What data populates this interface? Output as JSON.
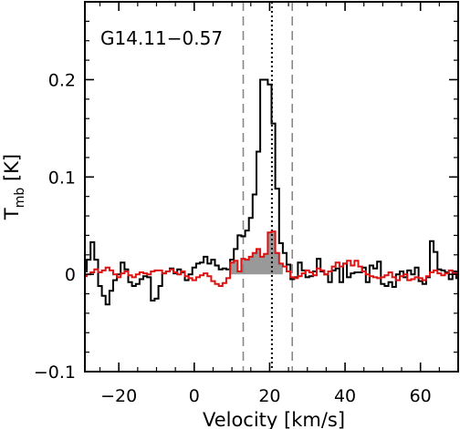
{
  "chart_data": {
    "type": "line",
    "drawstyle": "steps-mid",
    "annotation": "G14.11−0.57",
    "xlabel": "Velocity [km/s]",
    "ylabel": {
      "main": "T",
      "sub": "mb",
      "rest": " [K]"
    },
    "xlim": [
      -29,
      70
    ],
    "ylim": [
      -0.1,
      0.28
    ],
    "x_ticks": [
      -20,
      0,
      20,
      40,
      60
    ],
    "x_tick_labels": [
      "−20",
      "0",
      "20",
      "40",
      "60"
    ],
    "y_ticks": [
      -0.1,
      0,
      0.1,
      0.2
    ],
    "y_tick_labels": [
      "−0.1",
      "0",
      "0.1",
      "0.2"
    ],
    "vlines": [
      {
        "x": 13.0,
        "style": "dashed",
        "color": "#888888"
      },
      {
        "x": 20.6,
        "style": "dotted",
        "color": "#000000"
      },
      {
        "x": 26.0,
        "style": "dashed",
        "color": "#888888"
      }
    ],
    "shade": {
      "series_index": 1,
      "x_from": 10,
      "x_to": 23,
      "color": "#999999"
    },
    "series": [
      {
        "color": "#000000",
        "x": [
          -29,
          -28,
          -27,
          -26,
          -25,
          -24,
          -23,
          -22,
          -21,
          -20,
          -19,
          -18,
          -17,
          -16,
          -15,
          -14,
          -13,
          -12,
          -11,
          -10,
          -9,
          -8,
          -7,
          -6,
          -5,
          -4,
          -3,
          -2,
          -1,
          0,
          1,
          2,
          3,
          4,
          5,
          6,
          7,
          8,
          9,
          10,
          11,
          12,
          13,
          14,
          15,
          16,
          17,
          18,
          19,
          20,
          21,
          22,
          23,
          24,
          25,
          26,
          27,
          28,
          29,
          30,
          31,
          32,
          33,
          34,
          35,
          36,
          37,
          38,
          39,
          40,
          41,
          42,
          43,
          44,
          45,
          46,
          47,
          48,
          49,
          50,
          51,
          52,
          53,
          54,
          55,
          56,
          57,
          58,
          59,
          60,
          61,
          62,
          63,
          64,
          65,
          66,
          67,
          68,
          69,
          70
        ],
        "y": [
          0.003,
          0.015,
          0.033,
          0.015,
          -0.012,
          -0.022,
          -0.031,
          -0.017,
          -0.006,
          0.0,
          0.012,
          0.005,
          -0.008,
          -0.012,
          -0.01,
          -0.005,
          -0.002,
          -0.003,
          -0.027,
          -0.025,
          -0.012,
          0.001,
          0.003,
          0.006,
          0.001,
          0.005,
          0.002,
          -0.006,
          0.0,
          0.007,
          0.011,
          0.012,
          0.018,
          0.011,
          0.015,
          0.009,
          0.005,
          0.006,
          0.005,
          0.015,
          0.026,
          0.04,
          0.039,
          0.045,
          0.058,
          0.082,
          0.126,
          0.2,
          0.2,
          0.195,
          0.155,
          0.088,
          0.032,
          0.022,
          0.01,
          -0.005,
          -0.003,
          0.012,
          0.004,
          -0.003,
          -0.002,
          0.003,
          0.016,
          0.003,
          0.0,
          -0.008,
          0.004,
          0.006,
          -0.008,
          0.011,
          -0.003,
          0.001,
          0.002,
          0.002,
          0.007,
          -0.008,
          0.009,
          0.006,
          0.013,
          -0.01,
          -0.012,
          -0.008,
          -0.013,
          0.0,
          0.003,
          -0.003,
          0.004,
          0.0,
          0.007,
          -0.007,
          -0.01,
          -0.003,
          0.034,
          0.023,
          0.005,
          0.004,
          0.002,
          -0.005,
          0.003,
          -0.004
        ]
      },
      {
        "color": "#dd1111",
        "x": [
          -29,
          -28,
          -27,
          -26,
          -25,
          -24,
          -23,
          -22,
          -21,
          -20,
          -19,
          -18,
          -17,
          -16,
          -15,
          -14,
          -13,
          -12,
          -11,
          -10,
          -9,
          -8,
          -7,
          -6,
          -5,
          -4,
          -3,
          -2,
          -1,
          0,
          1,
          2,
          3,
          4,
          5,
          6,
          7,
          8,
          9,
          10,
          11,
          12,
          13,
          14,
          15,
          16,
          17,
          18,
          19,
          20,
          21,
          22,
          23,
          24,
          25,
          26,
          27,
          28,
          29,
          30,
          31,
          32,
          33,
          34,
          35,
          36,
          37,
          38,
          39,
          40,
          41,
          42,
          43,
          44,
          45,
          46,
          47,
          48,
          49,
          50,
          51,
          52,
          53,
          54,
          55,
          56,
          57,
          58,
          59,
          60,
          61,
          62,
          63,
          64,
          65,
          66,
          67,
          68,
          69,
          70
        ],
        "y": [
          -0.002,
          0.0,
          0.002,
          0.005,
          0.002,
          0.004,
          0.007,
          0.004,
          0.0,
          -0.003,
          0.001,
          0.003,
          -0.001,
          -0.003,
          0.0,
          0.002,
          0.001,
          0.0,
          0.003,
          0.004,
          0.004,
          0.001,
          0.003,
          0.005,
          0.002,
          0.0,
          0.003,
          -0.002,
          -0.004,
          -0.006,
          -0.003,
          -0.001,
          0.001,
          -0.002,
          -0.007,
          -0.01,
          -0.012,
          -0.009,
          -0.004,
          0.012,
          0.014,
          0.003,
          0.016,
          0.015,
          0.018,
          0.022,
          0.026,
          0.018,
          0.021,
          0.043,
          0.044,
          0.022,
          0.011,
          0.008,
          0.003,
          -0.003,
          -0.004,
          -0.002,
          0.001,
          0.004,
          0.002,
          -0.001,
          0.006,
          0.004,
          0.0,
          0.003,
          0.008,
          0.012,
          0.008,
          0.011,
          0.014,
          0.009,
          0.014,
          0.008,
          0.003,
          0.0,
          -0.002,
          -0.003,
          -0.004,
          -0.003,
          -0.001,
          0.002,
          -0.003,
          -0.006,
          -0.002,
          0.0,
          -0.006,
          -0.005,
          -0.003,
          -0.004,
          -0.006,
          -0.002,
          0.002,
          0.004,
          0.001,
          -0.001,
          0.001,
          0.004,
          0.001,
          0.0
        ]
      }
    ]
  }
}
